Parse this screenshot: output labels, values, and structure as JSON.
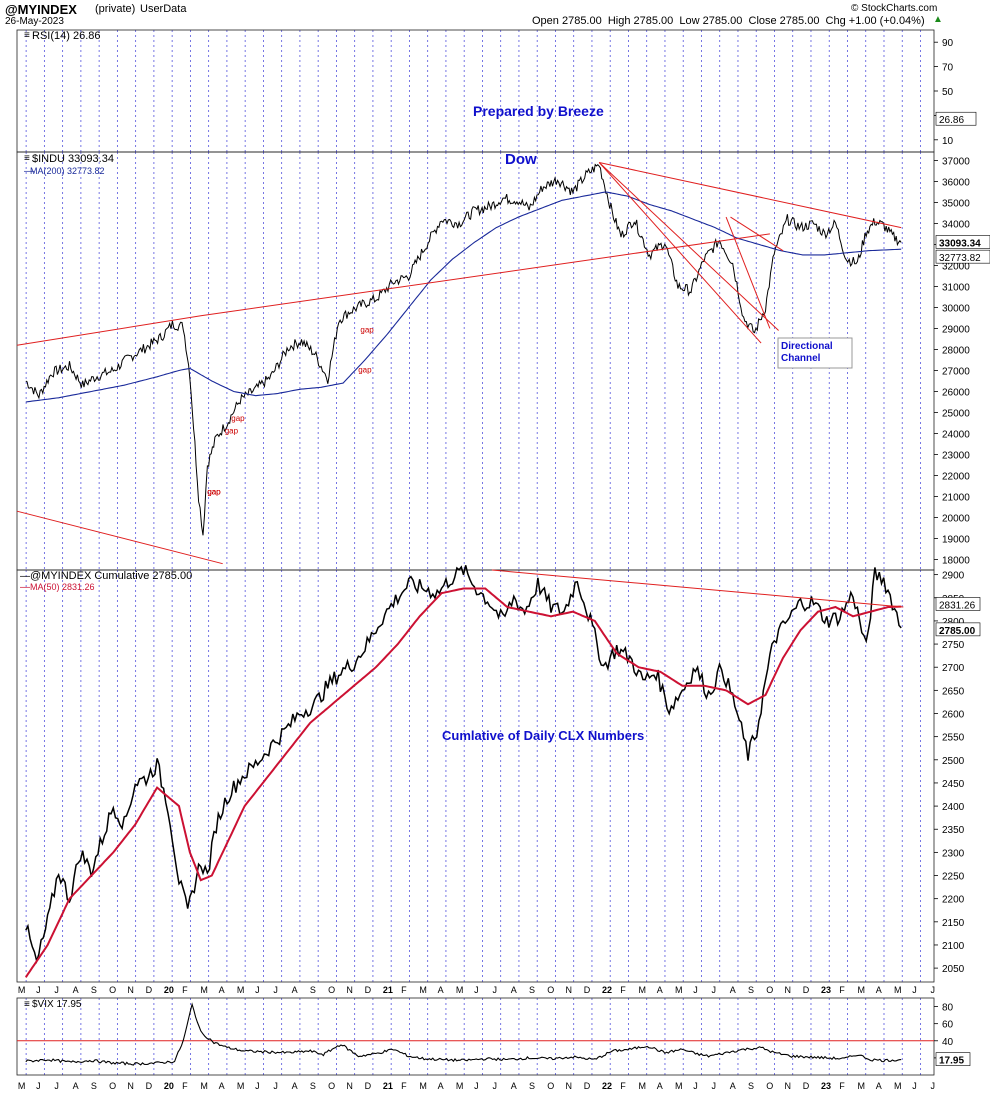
{
  "header": {
    "symbol": "@MYINDEX",
    "tag": "(private)",
    "source": "UserData",
    "date": "26-May-2023",
    "ohlc": "Open 2785.00  High 2785.00  Low 2785.00  Close 2785.00  Chg +1.00 (+0.04%)",
    "chg_arrow": "▲",
    "watermark": "© StockCharts.com"
  },
  "colors": {
    "price": "#000000",
    "ma200": "#1a2a9a",
    "ma50": "#cc1133",
    "trend": "#e02020",
    "annotation_blue": "#1010cc",
    "vline": "#5555dd",
    "gap_label": "#cc0000",
    "axis_box": "#222222"
  },
  "chart_data": [
    {
      "panel": "rsi",
      "type": "line",
      "legend": "RSI(14) 26.86",
      "yticks": [
        90,
        70,
        50,
        30,
        10
      ],
      "ylim": [
        0,
        100
      ],
      "last_label": "26.86",
      "annotation": "Prepared by Breeze"
    },
    {
      "panel": "dow",
      "type": "line",
      "legend": [
        "$INDU 33093.34",
        "MA(200) 32773.82"
      ],
      "title": "Dow",
      "ylim": [
        17500,
        37400
      ],
      "yticks": [
        37000,
        36000,
        35000,
        34000,
        33000,
        32000,
        31000,
        30000,
        29000,
        28000,
        27000,
        26000,
        25000,
        24000,
        23000,
        22000,
        21000,
        20000,
        19000,
        18000
      ],
      "last_labels": [
        "33093.34",
        "32773.82"
      ],
      "series": [
        {
          "name": "$INDU",
          "x": [
            2019.4,
            2019.46,
            2019.52,
            2019.6,
            2019.66,
            2019.72,
            2019.8,
            2019.87,
            2019.95,
            2020.02,
            2020.07,
            2020.12,
            2020.15,
            2020.19,
            2020.21,
            2020.23,
            2020.27,
            2020.32,
            2020.38,
            2020.45,
            2020.52,
            2020.6,
            2020.66,
            2020.72,
            2020.78,
            2020.83,
            2020.88,
            2020.95,
            2021.0,
            2021.08,
            2021.15,
            2021.22,
            2021.3,
            2021.38,
            2021.45,
            2021.52,
            2021.58,
            2021.65,
            2021.7,
            2021.76,
            2021.83,
            2021.9,
            2021.96,
            2022.02,
            2022.08,
            2022.12,
            2022.18,
            2022.25,
            2022.32,
            2022.38,
            2022.44,
            2022.5,
            2022.57,
            2022.63,
            2022.68,
            2022.73,
            2022.78,
            2022.82,
            2022.88,
            2022.94,
            2023.0,
            2023.05,
            2023.1,
            2023.15,
            2023.2,
            2023.24,
            2023.28,
            2023.32,
            2023.36,
            2023.4
          ],
          "values": [
            26500,
            25800,
            26900,
            27200,
            26300,
            26700,
            27000,
            27600,
            28100,
            28600,
            29200,
            29100,
            26800,
            21000,
            19200,
            22500,
            23800,
            24500,
            25600,
            26100,
            26700,
            28100,
            28400,
            27800,
            26600,
            29400,
            29800,
            30200,
            30400,
            31200,
            31500,
            32800,
            34200,
            34000,
            34600,
            34800,
            35200,
            35100,
            34700,
            35700,
            36100,
            35500,
            36300,
            36800,
            34500,
            33400,
            34200,
            32500,
            33100,
            31000,
            30800,
            32300,
            33200,
            32100,
            29500,
            28800,
            30000,
            32600,
            34200,
            33800,
            34000,
            33500,
            34000,
            32300,
            32100,
            33600,
            34100,
            33900,
            33400,
            33093
          ]
        },
        {
          "name": "MA(200)",
          "x": [
            2019.4,
            2019.55,
            2019.7,
            2019.85,
            2020.0,
            2020.1,
            2020.15,
            2020.25,
            2020.35,
            2020.45,
            2020.55,
            2020.65,
            2020.75,
            2020.85,
            2020.95,
            2021.05,
            2021.15,
            2021.25,
            2021.35,
            2021.45,
            2021.55,
            2021.65,
            2021.75,
            2021.85,
            2021.95,
            2022.05,
            2022.15,
            2022.25,
            2022.35,
            2022.45,
            2022.55,
            2022.65,
            2022.75,
            2022.85,
            2022.95,
            2023.05,
            2023.15,
            2023.25,
            2023.35,
            2023.4
          ],
          "values": [
            25500,
            25700,
            26000,
            26300,
            26700,
            27000,
            27100,
            26500,
            26000,
            25800,
            25900,
            26100,
            26200,
            26400,
            27500,
            28700,
            30000,
            31300,
            32300,
            33100,
            33800,
            34300,
            34700,
            35100,
            35300,
            35500,
            35300,
            34900,
            34600,
            34200,
            33800,
            33300,
            33000,
            32700,
            32500,
            32500,
            32600,
            32700,
            32750,
            32774
          ]
        }
      ],
      "annotations": [
        "gap",
        "gap",
        "gap",
        "gap",
        "gap",
        "gao"
      ],
      "callout": "Directional Channel"
    },
    {
      "panel": "cumulative",
      "type": "line",
      "legend": [
        "@MYINDEX Cumulative 2785.00",
        "MA(50) 2831.26"
      ],
      "annotation": "Cumlative of Daily CLX Numbers",
      "ylim": [
        2020,
        2910
      ],
      "yticks": [
        2900,
        2850,
        2800,
        2750,
        2700,
        2650,
        2600,
        2550,
        2500,
        2450,
        2400,
        2350,
        2300,
        2250,
        2200,
        2150,
        2100,
        2050
      ],
      "last_labels": [
        "2831.26",
        "2785.00"
      ],
      "series": [
        {
          "name": "@MYINDEX Cumulative",
          "x": [
            2019.4,
            2019.45,
            2019.5,
            2019.55,
            2019.6,
            2019.65,
            2019.7,
            2019.75,
            2019.8,
            2019.85,
            2019.9,
            2019.95,
            2020.0,
            2020.05,
            2020.1,
            2020.14,
            2020.17,
            2020.2,
            2020.23,
            2020.27,
            2020.32,
            2020.38,
            2020.45,
            2020.52,
            2020.58,
            2020.65,
            2020.72,
            2020.78,
            2020.84,
            2020.9,
            2020.96,
            2021.02,
            2021.08,
            2021.15,
            2021.22,
            2021.28,
            2021.34,
            2021.4,
            2021.46,
            2021.52,
            2021.58,
            2021.63,
            2021.68,
            2021.74,
            2021.8,
            2021.86,
            2021.92,
            2021.98,
            2022.04,
            2022.1,
            2022.16,
            2022.22,
            2022.28,
            2022.34,
            2022.4,
            2022.46,
            2022.52,
            2022.58,
            2022.64,
            2022.7,
            2022.74,
            2022.78,
            2022.82,
            2022.88,
            2022.94,
            2023.0,
            2023.06,
            2023.12,
            2023.18,
            2023.24,
            2023.28,
            2023.32,
            2023.36,
            2023.4
          ],
          "values": [
            2140,
            2060,
            2150,
            2260,
            2200,
            2300,
            2260,
            2330,
            2400,
            2360,
            2450,
            2460,
            2490,
            2400,
            2240,
            2170,
            2230,
            2280,
            2250,
            2360,
            2420,
            2460,
            2490,
            2530,
            2560,
            2600,
            2620,
            2660,
            2690,
            2710,
            2750,
            2800,
            2840,
            2880,
            2870,
            2860,
            2890,
            2910,
            2870,
            2840,
            2800,
            2850,
            2820,
            2880,
            2830,
            2820,
            2890,
            2800,
            2700,
            2740,
            2720,
            2670,
            2690,
            2610,
            2650,
            2700,
            2640,
            2700,
            2620,
            2510,
            2560,
            2670,
            2760,
            2800,
            2840,
            2840,
            2800,
            2810,
            2860,
            2740,
            2900,
            2890,
            2840,
            2785
          ]
        },
        {
          "name": "MA(50)",
          "x": [
            2019.4,
            2019.5,
            2019.6,
            2019.7,
            2019.8,
            2019.9,
            2020.0,
            2020.1,
            2020.15,
            2020.2,
            2020.25,
            2020.3,
            2020.4,
            2020.5,
            2020.6,
            2020.7,
            2020.8,
            2020.9,
            2021.0,
            2021.1,
            2021.2,
            2021.3,
            2021.4,
            2021.5,
            2021.6,
            2021.7,
            2021.8,
            2021.9,
            2022.0,
            2022.1,
            2022.2,
            2022.3,
            2022.4,
            2022.5,
            2022.6,
            2022.7,
            2022.78,
            2022.86,
            2022.94,
            2023.02,
            2023.1,
            2023.18,
            2023.26,
            2023.34,
            2023.4
          ],
          "values": [
            2030,
            2100,
            2200,
            2250,
            2300,
            2360,
            2440,
            2400,
            2300,
            2240,
            2250,
            2300,
            2400,
            2460,
            2520,
            2580,
            2620,
            2660,
            2700,
            2750,
            2810,
            2860,
            2870,
            2870,
            2830,
            2820,
            2810,
            2820,
            2800,
            2730,
            2700,
            2690,
            2660,
            2660,
            2650,
            2620,
            2640,
            2720,
            2780,
            2820,
            2830,
            2810,
            2820,
            2830,
            2831
          ]
        }
      ]
    },
    {
      "panel": "vix",
      "type": "line",
      "legend": "$VIX 17.95",
      "ylim": [
        0,
        90
      ],
      "yticks": [
        80,
        60,
        40,
        20
      ],
      "last_label": "17.95",
      "reference_line": 40,
      "series": [
        {
          "name": "$VIX",
          "x": [
            2019.4,
            2019.5,
            2019.6,
            2019.7,
            2019.8,
            2019.9,
            2020.0,
            2020.08,
            2020.12,
            2020.16,
            2020.2,
            2020.26,
            2020.32,
            2020.4,
            2020.5,
            2020.6,
            2020.7,
            2020.76,
            2020.84,
            2020.92,
            2021.0,
            2021.08,
            2021.15,
            2021.22,
            2021.3,
            2021.4,
            2021.5,
            2021.6,
            2021.7,
            2021.8,
            2021.9,
            2022.0,
            2022.08,
            2022.16,
            2022.24,
            2022.32,
            2022.4,
            2022.46,
            2022.52,
            2022.6,
            2022.68,
            2022.76,
            2022.82,
            2022.9,
            2022.98,
            2023.06,
            2023.14,
            2023.2,
            2023.26,
            2023.32,
            2023.4
          ],
          "values": [
            16,
            18,
            15,
            17,
            14,
            13,
            14,
            16,
            40,
            82,
            50,
            38,
            32,
            28,
            27,
            26,
            28,
            24,
            36,
            22,
            25,
            30,
            22,
            19,
            18,
            17,
            19,
            18,
            20,
            19,
            21,
            18,
            28,
            30,
            34,
            26,
            30,
            25,
            22,
            26,
            30,
            32,
            26,
            22,
            21,
            20,
            19,
            24,
            18,
            17,
            18
          ]
        }
      ]
    }
  ],
  "axis": {
    "months_top": [
      "M",
      "J",
      "J",
      "A",
      "S",
      "O",
      "N",
      "D",
      "20",
      "F",
      "M",
      "A",
      "M",
      "J",
      "J",
      "A",
      "S",
      "O",
      "N",
      "D",
      "21",
      "F",
      "M",
      "A",
      "M",
      "J",
      "J",
      "A",
      "S",
      "O",
      "N",
      "D",
      "22",
      "F",
      "M",
      "A",
      "M",
      "J",
      "J",
      "A",
      "S",
      "O",
      "N",
      "D",
      "23",
      "F",
      "M",
      "A",
      "M",
      "J",
      "J"
    ],
    "months_bottom": [
      "M",
      "J",
      "J",
      "A",
      "S",
      "O",
      "N",
      "D",
      "20",
      "F",
      "M",
      "A",
      "M",
      "J",
      "J",
      "A",
      "S",
      "O",
      "N",
      "D",
      "21",
      "F",
      "M",
      "A",
      "M",
      "J",
      "J",
      "A",
      "S",
      "O",
      "N",
      "D",
      "22",
      "F",
      "M",
      "A",
      "M",
      "J",
      "J",
      "A",
      "S",
      "O",
      "N",
      "D",
      "23",
      "F",
      "M",
      "A",
      "M",
      "J",
      "J"
    ]
  }
}
